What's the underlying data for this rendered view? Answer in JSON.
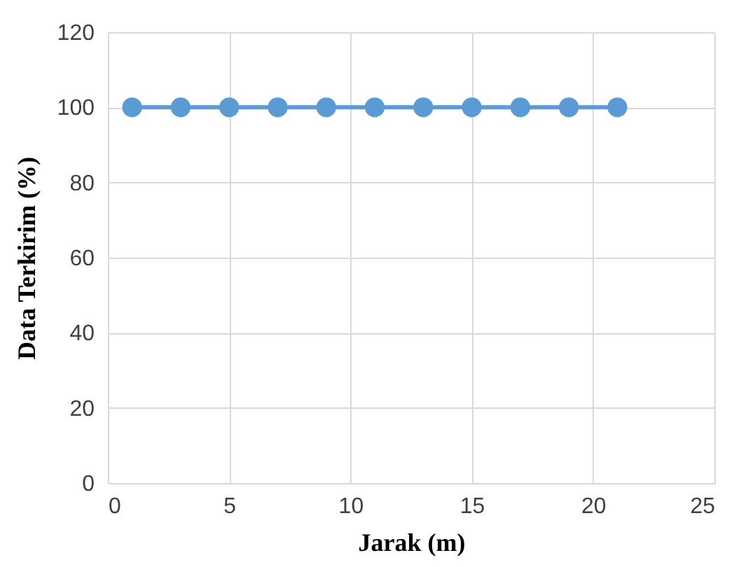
{
  "chart_data": {
    "type": "line",
    "xlabel": "Jarak (m)",
    "ylabel": "Data Terkirim (%)",
    "x": [
      1,
      3,
      5,
      7,
      9,
      11,
      13,
      15,
      17,
      19,
      21
    ],
    "series": [
      {
        "color": "#5b9bd5",
        "values": [
          100,
          100,
          100,
          100,
          100,
          100,
          100,
          100,
          100,
          100,
          100
        ]
      }
    ],
    "xlim": [
      0,
      25
    ],
    "xticks": [
      0,
      5,
      10,
      15,
      20,
      25
    ],
    "ylim": [
      0,
      120
    ],
    "yticks": [
      0,
      20,
      40,
      60,
      80,
      100,
      120
    ],
    "grid": true,
    "marker": "circle",
    "line_style": "solid"
  }
}
